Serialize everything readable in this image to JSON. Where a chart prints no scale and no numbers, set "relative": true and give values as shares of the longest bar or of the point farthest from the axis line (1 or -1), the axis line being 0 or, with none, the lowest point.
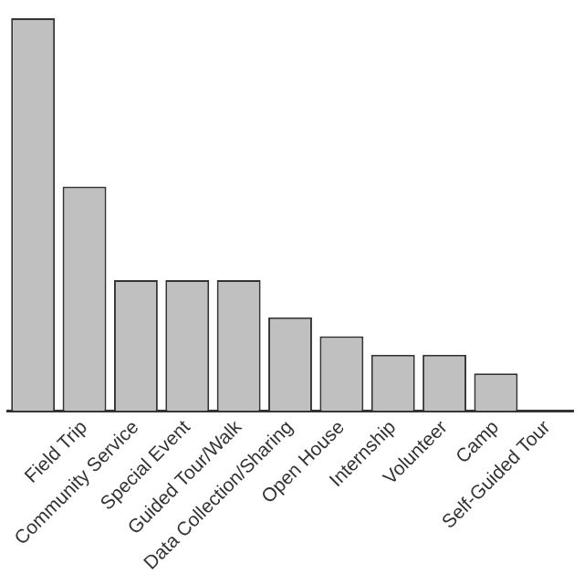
{
  "chart_data": {
    "type": "bar",
    "relative": true,
    "categories": [
      null,
      "Field Trip",
      "Community Service",
      "Special Event",
      "Guided Tour/Walk",
      "Data Collection/Sharing",
      "Open House",
      "Internship",
      "Volunteer",
      "Camp",
      "Self-Guided Tour"
    ],
    "values": [
      1,
      0.571,
      0.333,
      0.333,
      0.333,
      0.238,
      0.19,
      0.143,
      0.143,
      0.095,
      null
    ],
    "color": "#c0c0c0",
    "grid": false,
    "legend": false
  }
}
